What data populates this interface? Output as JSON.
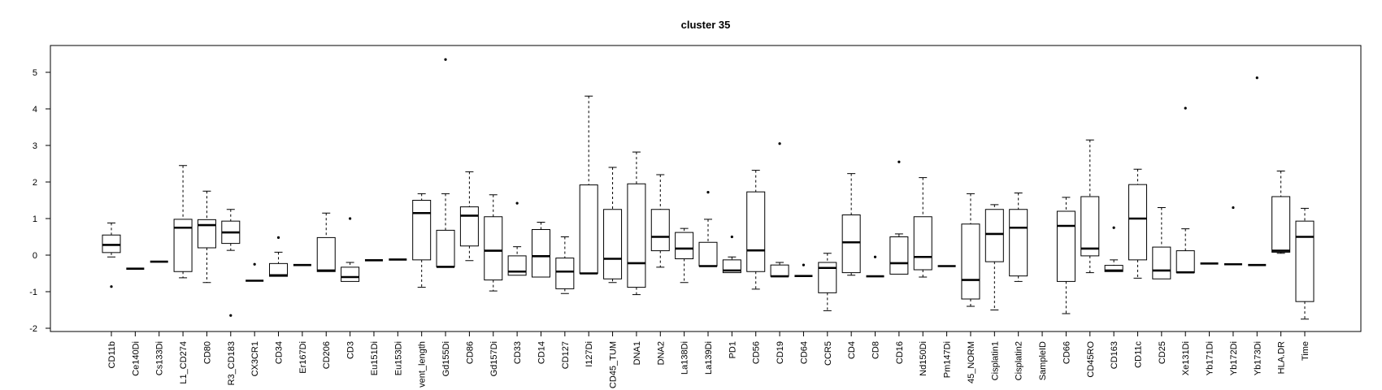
{
  "chart_data": {
    "type": "boxplot",
    "title": "cluster 35",
    "xlabel": "",
    "ylabel": "",
    "ylim": [
      -2,
      5.6
    ],
    "yticks": [
      -2,
      -1,
      0,
      1,
      2,
      3,
      4,
      5
    ],
    "grid": false,
    "legend": "none",
    "colors": {
      "box_fill": "#ffffff",
      "stroke": "#000000"
    },
    "boxes": [
      {
        "label": "CD11b",
        "whisker_low": -0.05,
        "q1": 0.07,
        "median": 0.28,
        "q3": 0.55,
        "whisker_high": 0.88,
        "outliers": [
          -0.86
        ]
      },
      {
        "label": "Ce140Di",
        "whisker_low": -0.37,
        "q1": -0.37,
        "median": -0.37,
        "q3": -0.37,
        "whisker_high": -0.37,
        "outliers": []
      },
      {
        "label": "Cs133Di",
        "whisker_low": -0.18,
        "q1": -0.18,
        "median": -0.18,
        "q3": -0.18,
        "whisker_high": -0.18,
        "outliers": []
      },
      {
        "label": "L1_CD274",
        "whisker_low": -0.62,
        "q1": -0.45,
        "median": 0.75,
        "q3": 0.98,
        "whisker_high": 2.45,
        "outliers": []
      },
      {
        "label": "CD80",
        "whisker_low": -0.75,
        "q1": 0.2,
        "median": 0.82,
        "q3": 0.97,
        "whisker_high": 1.75,
        "outliers": []
      },
      {
        "label": "R3_CD183",
        "whisker_low": 0.13,
        "q1": 0.32,
        "median": 0.62,
        "q3": 0.93,
        "whisker_high": 1.25,
        "outliers": [
          -1.65
        ]
      },
      {
        "label": "CX3CR1",
        "whisker_low": -0.7,
        "q1": -0.7,
        "median": -0.7,
        "q3": -0.7,
        "whisker_high": -0.7,
        "outliers": [
          -0.25
        ]
      },
      {
        "label": "CD34",
        "whisker_low": -0.58,
        "q1": -0.58,
        "median": -0.55,
        "q3": -0.23,
        "whisker_high": 0.08,
        "outliers": [
          0.48
        ]
      },
      {
        "label": "Er167Di",
        "whisker_low": -0.27,
        "q1": -0.27,
        "median": -0.27,
        "q3": -0.27,
        "whisker_high": -0.27,
        "outliers": []
      },
      {
        "label": "CD206",
        "whisker_low": -0.45,
        "q1": -0.45,
        "median": -0.42,
        "q3": 0.48,
        "whisker_high": 1.15,
        "outliers": []
      },
      {
        "label": "CD3",
        "whisker_low": -0.72,
        "q1": -0.72,
        "median": -0.6,
        "q3": -0.33,
        "whisker_high": -0.2,
        "outliers": [
          1.0
        ]
      },
      {
        "label": "Eu151Di",
        "whisker_low": -0.14,
        "q1": -0.14,
        "median": -0.14,
        "q3": -0.14,
        "whisker_high": -0.14,
        "outliers": []
      },
      {
        "label": "Eu153Di",
        "whisker_low": -0.12,
        "q1": -0.12,
        "median": -0.12,
        "q3": -0.12,
        "whisker_high": -0.12,
        "outliers": []
      },
      {
        "label": "vent_length",
        "whisker_low": -0.88,
        "q1": -0.13,
        "median": 1.15,
        "q3": 1.5,
        "whisker_high": 1.68,
        "outliers": []
      },
      {
        "label": "Gd155Di",
        "whisker_low": -0.32,
        "q1": -0.32,
        "median": -0.32,
        "q3": 0.68,
        "whisker_high": 1.68,
        "outliers": [
          5.35
        ]
      },
      {
        "label": "CD86",
        "whisker_low": -0.15,
        "q1": 0.25,
        "median": 1.08,
        "q3": 1.32,
        "whisker_high": 2.28,
        "outliers": []
      },
      {
        "label": "Gd157Di",
        "whisker_low": -0.98,
        "q1": -0.68,
        "median": 0.12,
        "q3": 1.05,
        "whisker_high": 1.65,
        "outliers": []
      },
      {
        "label": "CD33",
        "whisker_low": -0.55,
        "q1": -0.55,
        "median": -0.45,
        "q3": -0.02,
        "whisker_high": 0.23,
        "outliers": [
          1.42
        ]
      },
      {
        "label": "CD14",
        "whisker_low": -0.6,
        "q1": -0.6,
        "median": -0.03,
        "q3": 0.7,
        "whisker_high": 0.9,
        "outliers": []
      },
      {
        "label": "CD127",
        "whisker_low": -1.05,
        "q1": -0.92,
        "median": -0.45,
        "q3": -0.08,
        "whisker_high": 0.5,
        "outliers": []
      },
      {
        "label": "I127Di",
        "whisker_low": -0.5,
        "q1": -0.5,
        "median": -0.5,
        "q3": 1.92,
        "whisker_high": 4.35,
        "outliers": []
      },
      {
        "label": "CD45_TUM",
        "whisker_low": -0.75,
        "q1": -0.65,
        "median": -0.1,
        "q3": 1.25,
        "whisker_high": 2.4,
        "outliers": []
      },
      {
        "label": "DNA1",
        "whisker_low": -1.08,
        "q1": -0.88,
        "median": -0.22,
        "q3": 1.95,
        "whisker_high": 2.82,
        "outliers": []
      },
      {
        "label": "DNA2",
        "whisker_low": -0.33,
        "q1": 0.12,
        "median": 0.5,
        "q3": 1.25,
        "whisker_high": 2.2,
        "outliers": []
      },
      {
        "label": "La138Di",
        "whisker_low": -0.75,
        "q1": -0.1,
        "median": 0.18,
        "q3": 0.62,
        "whisker_high": 0.73,
        "outliers": []
      },
      {
        "label": "La139Di",
        "whisker_low": -0.3,
        "q1": -0.3,
        "median": -0.3,
        "q3": 0.35,
        "whisker_high": 0.98,
        "outliers": [
          1.72
        ]
      },
      {
        "label": "PD1",
        "whisker_low": -0.48,
        "q1": -0.48,
        "median": -0.42,
        "q3": -0.13,
        "whisker_high": -0.05,
        "outliers": [
          0.5
        ]
      },
      {
        "label": "CD56",
        "whisker_low": -0.93,
        "q1": -0.45,
        "median": 0.13,
        "q3": 1.73,
        "whisker_high": 2.32,
        "outliers": []
      },
      {
        "label": "CD19",
        "whisker_low": -0.58,
        "q1": -0.58,
        "median": -0.58,
        "q3": -0.27,
        "whisker_high": -0.2,
        "outliers": [
          3.05
        ]
      },
      {
        "label": "CD64",
        "whisker_low": -0.57,
        "q1": -0.57,
        "median": -0.57,
        "q3": -0.57,
        "whisker_high": -0.57,
        "outliers": [
          -0.27
        ]
      },
      {
        "label": "CCR5",
        "whisker_low": -1.52,
        "q1": -1.03,
        "median": -0.35,
        "q3": -0.2,
        "whisker_high": 0.05,
        "outliers": []
      },
      {
        "label": "CD4",
        "whisker_low": -0.55,
        "q1": -0.48,
        "median": 0.35,
        "q3": 1.1,
        "whisker_high": 2.23,
        "outliers": []
      },
      {
        "label": "CD8",
        "whisker_low": -0.58,
        "q1": -0.58,
        "median": -0.58,
        "q3": -0.58,
        "whisker_high": -0.58,
        "outliers": [
          -0.05
        ]
      },
      {
        "label": "CD16",
        "whisker_low": -0.52,
        "q1": -0.52,
        "median": -0.22,
        "q3": 0.5,
        "whisker_high": 0.58,
        "outliers": [
          2.55
        ]
      },
      {
        "label": "Nd150Di",
        "whisker_low": -0.6,
        "q1": -0.4,
        "median": -0.05,
        "q3": 1.05,
        "whisker_high": 2.12,
        "outliers": []
      },
      {
        "label": "Pm147Di",
        "whisker_low": -0.3,
        "q1": -0.3,
        "median": -0.3,
        "q3": -0.3,
        "whisker_high": -0.3,
        "outliers": []
      },
      {
        "label": "45_NORM",
        "whisker_low": -1.4,
        "q1": -1.2,
        "median": -0.68,
        "q3": 0.85,
        "whisker_high": 1.68,
        "outliers": []
      },
      {
        "label": "Cisplatin1",
        "whisker_low": -1.5,
        "q1": -0.18,
        "median": 0.58,
        "q3": 1.25,
        "whisker_high": 1.38,
        "outliers": []
      },
      {
        "label": "Cisplatin2",
        "whisker_low": -0.72,
        "q1": -0.57,
        "median": 0.75,
        "q3": 1.25,
        "whisker_high": 1.7,
        "outliers": []
      },
      {
        "label": "SampleID",
        "whisker_low": null,
        "q1": null,
        "median": null,
        "q3": null,
        "whisker_high": null,
        "outliers": []
      },
      {
        "label": "CD66",
        "whisker_low": -1.6,
        "q1": -0.72,
        "median": 0.8,
        "q3": 1.2,
        "whisker_high": 1.58,
        "outliers": []
      },
      {
        "label": "CD45RO",
        "whisker_low": -0.48,
        "q1": -0.02,
        "median": 0.18,
        "q3": 1.6,
        "whisker_high": 3.15,
        "outliers": []
      },
      {
        "label": "CD163",
        "whisker_low": -0.45,
        "q1": -0.45,
        "median": -0.42,
        "q3": -0.28,
        "whisker_high": -0.13,
        "outliers": [
          0.75
        ]
      },
      {
        "label": "CD11c",
        "whisker_low": -0.63,
        "q1": -0.13,
        "median": 1.0,
        "q3": 1.93,
        "whisker_high": 2.35,
        "outliers": []
      },
      {
        "label": "CD25",
        "whisker_low": -0.65,
        "q1": -0.65,
        "median": -0.42,
        "q3": 0.22,
        "whisker_high": 1.3,
        "outliers": []
      },
      {
        "label": "Xe131Di",
        "whisker_low": -0.48,
        "q1": -0.48,
        "median": -0.47,
        "q3": 0.12,
        "whisker_high": 0.72,
        "outliers": [
          4.02
        ]
      },
      {
        "label": "Yb171Di",
        "whisker_low": -0.23,
        "q1": -0.23,
        "median": -0.23,
        "q3": -0.23,
        "whisker_high": -0.23,
        "outliers": []
      },
      {
        "label": "Yb172Di",
        "whisker_low": -0.25,
        "q1": -0.25,
        "median": -0.25,
        "q3": -0.25,
        "whisker_high": -0.25,
        "outliers": [
          1.3
        ]
      },
      {
        "label": "Yb173Di",
        "whisker_low": -0.27,
        "q1": -0.27,
        "median": -0.27,
        "q3": -0.27,
        "whisker_high": -0.27,
        "outliers": [
          4.85
        ]
      },
      {
        "label": "HLA.DR",
        "whisker_low": 0.05,
        "q1": 0.08,
        "median": 0.12,
        "q3": 1.6,
        "whisker_high": 2.3,
        "outliers": []
      },
      {
        "label": "Time",
        "whisker_low": -1.75,
        "q1": -1.27,
        "median": 0.5,
        "q3": 0.93,
        "whisker_high": 1.28,
        "outliers": []
      }
    ]
  }
}
